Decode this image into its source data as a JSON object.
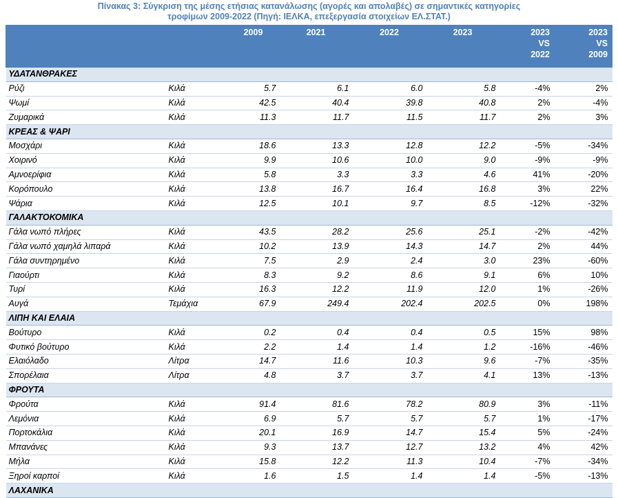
{
  "title_lines": [
    "Πίνακας 3: Σύγκριση της μέσης ετήσιας κατανάλωσης (αγορές και απολαβές)  σε σημαντικές κατηγορίες",
    "τροφίμων 2009-2022 (Πηγή: ΙΕΛΚΑ, επεξεργασία στοιχείων ΕΛ.ΣΤΑΤ.)"
  ],
  "table": {
    "columns": [
      "2009",
      "2021",
      "2022",
      "2023",
      "2023\nVS\n2022",
      "2023\nVS\n2009"
    ],
    "sections": [
      {
        "name": "ΥΔΑΤΑΝΘΡΑΚΕΣ",
        "rows": [
          [
            "Ρύζι",
            "Κιλά",
            "5.7",
            "6.1",
            "6.0",
            "5.8",
            "-4%",
            "2%"
          ],
          [
            "Ψωμί",
            "Κιλά",
            "42.5",
            "40.4",
            "39.8",
            "40.8",
            "2%",
            "-4%"
          ],
          [
            "Ζυμαρικά",
            "Κιλά",
            "11.3",
            "11.7",
            "11.5",
            "11.7",
            "2%",
            "3%"
          ]
        ]
      },
      {
        "name": "ΚΡΕΑΣ & ΨΑΡΙ",
        "rows": [
          [
            "Μοσχάρι",
            "Κιλά",
            "18.6",
            "13.3",
            "12.8",
            "12.2",
            "-5%",
            "-34%"
          ],
          [
            "Χοιρινό",
            "Κιλά",
            "9.9",
            "10.6",
            "10.0",
            "9.0",
            "-9%",
            "-9%"
          ],
          [
            "Αμνοερίφια",
            "Κιλά",
            "5.8",
            "3.3",
            "3.3",
            "4.6",
            "41%",
            "-20%"
          ],
          [
            "Κορόπουλο",
            "Κιλά",
            "13.8",
            "16.7",
            "16.4",
            "16.8",
            "3%",
            "22%"
          ],
          [
            "Ψάρια",
            "Κιλά",
            "12.5",
            "10.1",
            "9.7",
            "8.5",
            "-12%",
            "-32%"
          ]
        ]
      },
      {
        "name": "ΓΑΛΑΚΤΟΚΟΜΙΚΑ",
        "rows": [
          [
            "Γάλα νωπό πλήρες",
            "Κιλά",
            "43.5",
            "28.2",
            "25.6",
            "25.1",
            "-2%",
            "-42%"
          ],
          [
            "Γάλα νωπό  χαμηλά λιπαρά",
            "Κιλά",
            "10.2",
            "13.9",
            "14.3",
            "14.7",
            "2%",
            "44%"
          ],
          [
            "Γάλα συντηρημένο",
            "Κιλά",
            "7.5",
            "2.9",
            "2.4",
            "3.0",
            "23%",
            "-60%"
          ],
          [
            "Γιαούρτι",
            "Κιλά",
            "8.3",
            "9.2",
            "8.6",
            "9.1",
            "6%",
            "10%"
          ],
          [
            "Τυρί",
            "Κιλά",
            "16.3",
            "12.2",
            "11.9",
            "12.0",
            "1%",
            "-26%"
          ],
          [
            "Αυγά",
            "Τεμάχια",
            "67.9",
            "249.4",
            "202.4",
            "202.5",
            "0%",
            "198%"
          ]
        ]
      },
      {
        "name": "ΛΙΠΗ ΚΑΙ ΕΛΑΙΑ",
        "rows": [
          [
            "Βούτυρο",
            "Κιλά",
            "0.2",
            "0.4",
            "0.4",
            "0.5",
            "15%",
            "98%"
          ],
          [
            "Φυτικό βούτυρο",
            "Κιλά",
            "2.2",
            "1.4",
            "1.4",
            "1.2",
            "-16%",
            "-46%"
          ],
          [
            "Ελαιόλαδο",
            "Λίτρα",
            "14.7",
            "11.6",
            "10.3",
            "9.6",
            "-7%",
            "-35%"
          ],
          [
            "Σπορέλαια",
            "Λίτρα",
            "4.8",
            "3.7",
            "3.7",
            "4.1",
            "13%",
            "-13%"
          ]
        ]
      },
      {
        "name": "ΦΡΟΥΤΑ",
        "rows": [
          [
            "Φρούτα",
            "Κιλά",
            "91.4",
            "81.6",
            "78.2",
            "80.9",
            "3%",
            "-11%"
          ],
          [
            "Λεμόνια",
            "Κιλά",
            "6.9",
            "5.7",
            "5.7",
            "5.7",
            "1%",
            "-17%"
          ],
          [
            "Πορτοκάλια",
            "Κιλά",
            "20.1",
            "16.9",
            "14.7",
            "15.4",
            "5%",
            "-24%"
          ],
          [
            "Μπανάνες",
            "Κιλά",
            "9.3",
            "13.7",
            "12.7",
            "13.2",
            "4%",
            "42%"
          ],
          [
            "Μήλα",
            "Κιλά",
            "15.8",
            "12.2",
            "11.3",
            "10.4",
            "-7%",
            "-34%"
          ],
          [
            "Ξηροί καρποί",
            "Κιλά",
            "1.6",
            "1.5",
            "1.4",
            "1.4",
            "-5%",
            "-13%"
          ]
        ]
      },
      {
        "name": "ΛΑΧΑΝΙΚΑ",
        "rows": []
      }
    ]
  }
}
